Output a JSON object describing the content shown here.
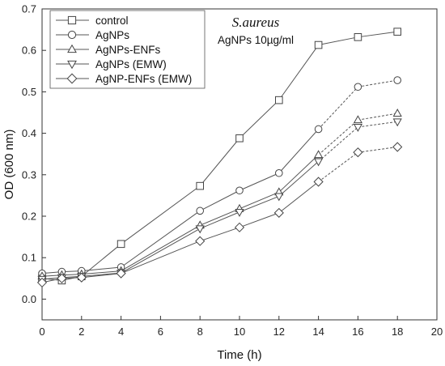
{
  "chart_data": {
    "type": "line",
    "xlabel": "Time (h)",
    "ylabel": "OD (600 nm)",
    "xlim": [
      0,
      20
    ],
    "ylim": [
      -0.05,
      0.7
    ],
    "x_ticks": [
      "0",
      "2",
      "4",
      "6",
      "8",
      "10",
      "12",
      "14",
      "16",
      "18",
      "20"
    ],
    "y_ticks": [
      "0.0",
      "0.1",
      "0.2",
      "0.3",
      "0.4",
      "0.5",
      "0.6",
      "0.7"
    ],
    "x": [
      0,
      1,
      2,
      4,
      8,
      10,
      12,
      14,
      16,
      18
    ],
    "series": [
      {
        "name": "control",
        "marker": "square",
        "values": [
          0.05,
          0.045,
          0.055,
          0.133,
          0.273,
          0.388,
          0.48,
          0.613,
          0.632,
          0.645
        ]
      },
      {
        "name": "AgNPs",
        "marker": "circle",
        "values": [
          0.062,
          0.066,
          0.068,
          0.077,
          0.213,
          0.262,
          0.304,
          0.41,
          0.512,
          0.528
        ]
      },
      {
        "name": "AgNPs-ENFs",
        "marker": "triangle-up",
        "values": [
          0.055,
          0.058,
          0.06,
          0.068,
          0.178,
          0.218,
          0.258,
          0.348,
          0.432,
          0.448
        ]
      },
      {
        "name": "AgNPs (EMW)",
        "marker": "triangle-down",
        "values": [
          0.048,
          0.052,
          0.055,
          0.063,
          0.17,
          0.21,
          0.248,
          0.332,
          0.415,
          0.428
        ]
      },
      {
        "name": "AgNP-ENFs (EMW)",
        "marker": "diamond",
        "values": [
          0.04,
          0.05,
          0.052,
          0.062,
          0.14,
          0.173,
          0.208,
          0.283,
          0.354,
          0.367
        ]
      }
    ],
    "legend_position": "top-left",
    "grid": false,
    "annotation": {
      "title": "S.aureus",
      "subtitle": "AgNPs 10µg/ml"
    }
  }
}
